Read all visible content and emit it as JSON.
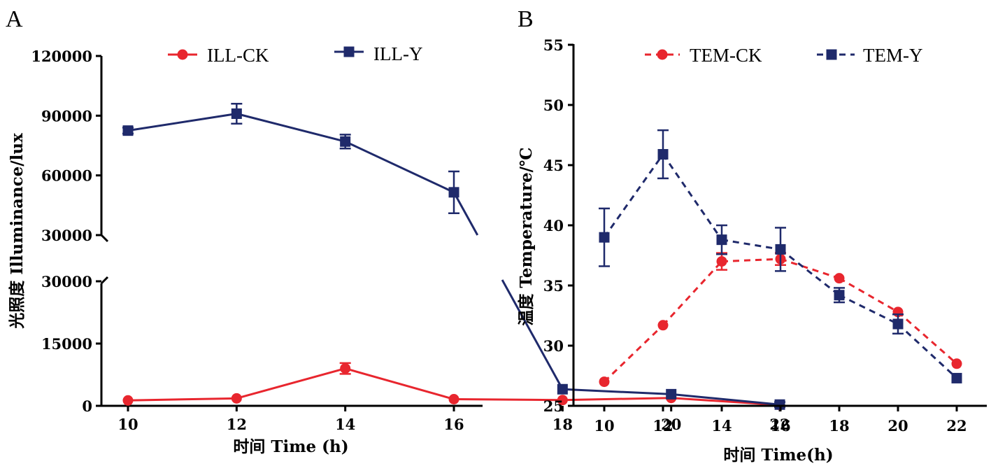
{
  "chart_data": [
    {
      "type": "line",
      "panel": "A",
      "title": "",
      "xlabel": "时间 Time (h)",
      "ylabel": "光照度 Illuminance/lux",
      "x": [
        10,
        12,
        14,
        16,
        18,
        20,
        22
      ],
      "x_ticks": [
        "10",
        "12",
        "14",
        "16",
        "18",
        "20",
        "22"
      ],
      "y_axis_broken": true,
      "y_segments": [
        {
          "range": [
            0,
            30000
          ],
          "ticks": [
            "0",
            "15000",
            "30000"
          ]
        },
        {
          "range": [
            30000,
            120000
          ],
          "ticks": [
            "30000",
            "60000",
            "90000",
            "120000"
          ]
        }
      ],
      "legend_position": "top",
      "grid": false,
      "series": [
        {
          "name": "ILL-CK",
          "color": "#e8262e",
          "marker": "circle",
          "line_style": "solid",
          "values": [
            1300,
            1800,
            9000,
            1600,
            1400,
            1900,
            200
          ],
          "errors": [
            0,
            0,
            1300,
            0,
            0,
            0,
            0
          ]
        },
        {
          "name": "ILL-Y",
          "color": "#1f2a6b",
          "marker": "square",
          "line_style": "solid",
          "values": [
            82500,
            91000,
            77000,
            51500,
            4000,
            2800,
            300
          ],
          "errors": [
            1500,
            5000,
            3500,
            10500,
            0,
            0,
            600
          ]
        }
      ]
    },
    {
      "type": "line",
      "panel": "B",
      "title": "",
      "xlabel": "时间 Time(h)",
      "ylabel": "温度 Temperature/℃",
      "x": [
        10,
        12,
        14,
        16,
        18,
        20,
        22
      ],
      "x_ticks": [
        "10",
        "12",
        "14",
        "16",
        "18",
        "20",
        "22"
      ],
      "y_ticks": [
        "25",
        "30",
        "35",
        "40",
        "45",
        "50",
        "55"
      ],
      "ylim": [
        25,
        55
      ],
      "legend_position": "top",
      "grid": false,
      "series": [
        {
          "name": "TEM-CK",
          "color": "#e8262e",
          "marker": "circle",
          "line_style": "dashed",
          "values": [
            27.0,
            31.7,
            37.0,
            37.2,
            35.6,
            32.8,
            28.5
          ],
          "errors": [
            0,
            0,
            0.7,
            0.5,
            0,
            0,
            0
          ]
        },
        {
          "name": "TEM-Y",
          "color": "#1f2a6b",
          "marker": "square",
          "line_style": "dashed",
          "values": [
            39.0,
            45.9,
            38.8,
            38.0,
            34.2,
            31.8,
            27.3
          ],
          "errors": [
            2.4,
            2.0,
            1.2,
            1.8,
            0.6,
            0.8,
            0
          ]
        }
      ]
    }
  ]
}
